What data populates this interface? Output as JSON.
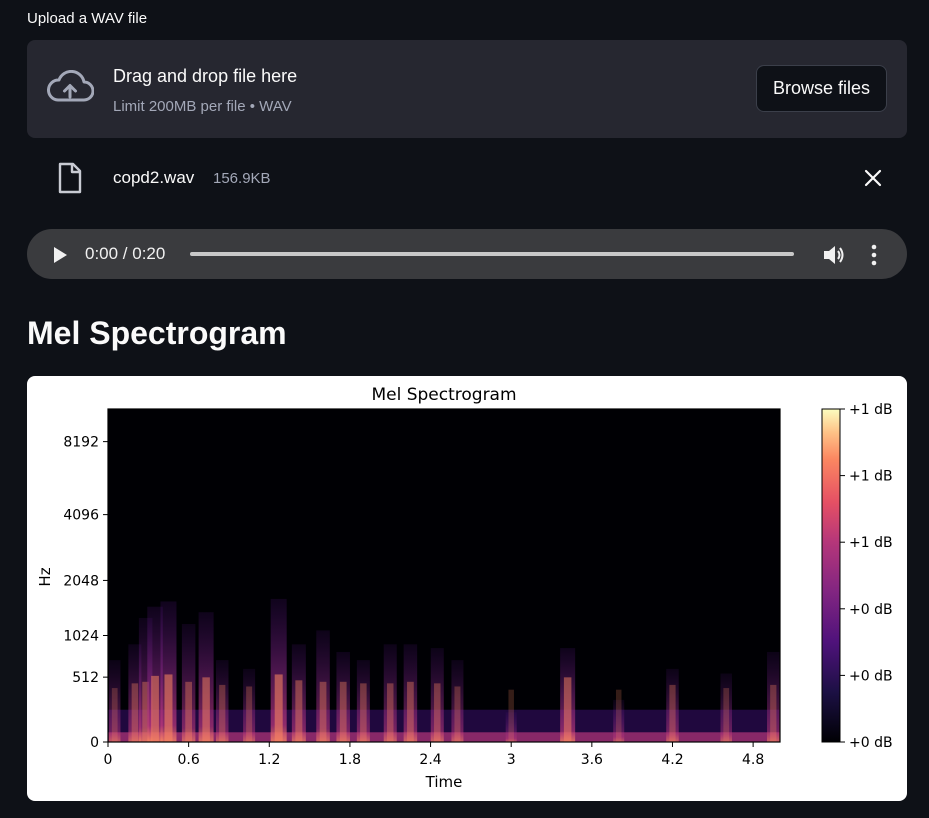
{
  "upload": {
    "label": "Upload a WAV file",
    "drop_title": "Drag and drop file here",
    "drop_subtitle": "Limit 200MB per file • WAV",
    "browse_label": "Browse files",
    "cloud_icon": "cloud-upload-icon"
  },
  "file": {
    "name": "copd2.wav",
    "size": "156.9KB",
    "icon": "file-icon",
    "remove_icon": "close-icon"
  },
  "audio": {
    "time": "0:00 / 0:20",
    "progress": 0
  },
  "section": {
    "title": "Mel Spectrogram"
  },
  "chart_data": {
    "type": "heatmap",
    "title": "Mel Spectrogram",
    "xlabel": "Time",
    "ylabel": "Hz",
    "xlim": [
      0,
      5.0
    ],
    "x_ticks": [
      "0",
      "0.6",
      "1.2",
      "1.8",
      "2.4",
      "3",
      "3.6",
      "4.2",
      "4.8"
    ],
    "x_tick_values": [
      0,
      0.6,
      1.2,
      1.8,
      2.4,
      3.0,
      3.6,
      4.2,
      4.8
    ],
    "y_ticks": [
      "0",
      "512",
      "1024",
      "2048",
      "4096",
      "8192"
    ],
    "y_scale": "mel",
    "colormap": "magma",
    "colorbar_ticks": [
      "+1 dB",
      "+1 dB",
      "+1 dB",
      "+0 dB",
      "+0 dB",
      "+0 dB"
    ],
    "energy_columns": [
      {
        "t": 0.05,
        "top_hz": 700,
        "level": 0.35
      },
      {
        "t": 0.2,
        "top_hz": 900,
        "level": 0.5
      },
      {
        "t": 0.28,
        "top_hz": 1300,
        "level": 0.55
      },
      {
        "t": 0.35,
        "top_hz": 1500,
        "level": 0.75
      },
      {
        "t": 0.45,
        "top_hz": 1600,
        "level": 0.8
      },
      {
        "t": 0.6,
        "top_hz": 1200,
        "level": 0.55
      },
      {
        "t": 0.73,
        "top_hz": 1400,
        "level": 0.7
      },
      {
        "t": 0.85,
        "top_hz": 700,
        "level": 0.45
      },
      {
        "t": 1.05,
        "top_hz": 600,
        "level": 0.4
      },
      {
        "t": 1.27,
        "top_hz": 1650,
        "level": 0.8
      },
      {
        "t": 1.42,
        "top_hz": 900,
        "level": 0.6
      },
      {
        "t": 1.6,
        "top_hz": 1100,
        "level": 0.55
      },
      {
        "t": 1.75,
        "top_hz": 800,
        "level": 0.55
      },
      {
        "t": 1.9,
        "top_hz": 700,
        "level": 0.5
      },
      {
        "t": 2.1,
        "top_hz": 900,
        "level": 0.5
      },
      {
        "t": 2.25,
        "top_hz": 900,
        "level": 0.55
      },
      {
        "t": 2.45,
        "top_hz": 850,
        "level": 0.5
      },
      {
        "t": 2.6,
        "top_hz": 700,
        "level": 0.4
      },
      {
        "t": 3.0,
        "top_hz": 200,
        "level": 0.3
      },
      {
        "t": 3.42,
        "top_hz": 850,
        "level": 0.7
      },
      {
        "t": 3.8,
        "top_hz": 300,
        "level": 0.3
      },
      {
        "t": 4.2,
        "top_hz": 600,
        "level": 0.45
      },
      {
        "t": 4.6,
        "top_hz": 550,
        "level": 0.35
      },
      {
        "t": 4.95,
        "top_hz": 800,
        "level": 0.45
      }
    ]
  }
}
